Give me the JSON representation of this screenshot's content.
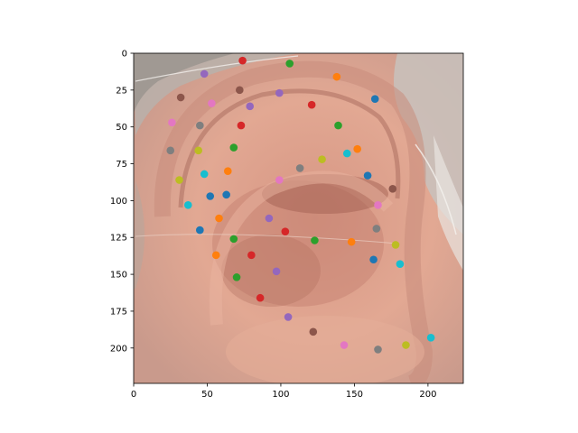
{
  "chart_data": {
    "type": "scatter",
    "background_image": "ear photograph (close-up of human ear with gray hair)",
    "xlim": [
      0,
      224
    ],
    "ylim": [
      224,
      0
    ],
    "x_ticks": [
      0,
      50,
      100,
      150,
      200
    ],
    "y_ticks": [
      0,
      25,
      50,
      75,
      100,
      125,
      150,
      175,
      200
    ],
    "grid": false,
    "legend": "none",
    "palette": [
      "#1f77b4",
      "#ff7f0e",
      "#2ca02c",
      "#d62728",
      "#9467bd",
      "#8c564b",
      "#e377c2",
      "#7f7f7f",
      "#bcbd22",
      "#17becf"
    ],
    "points": [
      {
        "x": 74,
        "y": 5,
        "color": "#d62728"
      },
      {
        "x": 106,
        "y": 7,
        "color": "#2ca02c"
      },
      {
        "x": 48,
        "y": 14,
        "color": "#9467bd"
      },
      {
        "x": 138,
        "y": 16,
        "color": "#ff7f0e"
      },
      {
        "x": 72,
        "y": 25,
        "color": "#8c564b"
      },
      {
        "x": 99,
        "y": 27,
        "color": "#9467bd"
      },
      {
        "x": 32,
        "y": 30,
        "color": "#8c564b"
      },
      {
        "x": 164,
        "y": 31,
        "color": "#1f77b4"
      },
      {
        "x": 53,
        "y": 34,
        "color": "#e377c2"
      },
      {
        "x": 79,
        "y": 36,
        "color": "#9467bd"
      },
      {
        "x": 121,
        "y": 35,
        "color": "#d62728"
      },
      {
        "x": 26,
        "y": 47,
        "color": "#e377c2"
      },
      {
        "x": 45,
        "y": 49,
        "color": "#7f7f7f"
      },
      {
        "x": 73,
        "y": 49,
        "color": "#d62728"
      },
      {
        "x": 139,
        "y": 49,
        "color": "#2ca02c"
      },
      {
        "x": 68,
        "y": 64,
        "color": "#2ca02c"
      },
      {
        "x": 25,
        "y": 66,
        "color": "#7f7f7f"
      },
      {
        "x": 44,
        "y": 66,
        "color": "#bcbd22"
      },
      {
        "x": 152,
        "y": 65,
        "color": "#ff7f0e"
      },
      {
        "x": 145,
        "y": 68,
        "color": "#17becf"
      },
      {
        "x": 128,
        "y": 72,
        "color": "#bcbd22"
      },
      {
        "x": 113,
        "y": 78,
        "color": "#7f7f7f"
      },
      {
        "x": 64,
        "y": 80,
        "color": "#ff7f0e"
      },
      {
        "x": 48,
        "y": 82,
        "color": "#17becf"
      },
      {
        "x": 159,
        "y": 83,
        "color": "#1f77b4"
      },
      {
        "x": 31,
        "y": 86,
        "color": "#bcbd22"
      },
      {
        "x": 99,
        "y": 86,
        "color": "#e377c2"
      },
      {
        "x": 176,
        "y": 92,
        "color": "#8c564b"
      },
      {
        "x": 52,
        "y": 97,
        "color": "#1f77b4"
      },
      {
        "x": 63,
        "y": 96,
        "color": "#1f77b4"
      },
      {
        "x": 37,
        "y": 103,
        "color": "#17becf"
      },
      {
        "x": 166,
        "y": 103,
        "color": "#e377c2"
      },
      {
        "x": 58,
        "y": 112,
        "color": "#ff7f0e"
      },
      {
        "x": 92,
        "y": 112,
        "color": "#9467bd"
      },
      {
        "x": 45,
        "y": 120,
        "color": "#1f77b4"
      },
      {
        "x": 103,
        "y": 121,
        "color": "#d62728"
      },
      {
        "x": 165,
        "y": 119,
        "color": "#7f7f7f"
      },
      {
        "x": 68,
        "y": 126,
        "color": "#2ca02c"
      },
      {
        "x": 123,
        "y": 127,
        "color": "#2ca02c"
      },
      {
        "x": 148,
        "y": 128,
        "color": "#ff7f0e"
      },
      {
        "x": 178,
        "y": 130,
        "color": "#bcbd22"
      },
      {
        "x": 56,
        "y": 137,
        "color": "#ff7f0e"
      },
      {
        "x": 80,
        "y": 137,
        "color": "#d62728"
      },
      {
        "x": 163,
        "y": 140,
        "color": "#1f77b4"
      },
      {
        "x": 181,
        "y": 143,
        "color": "#17becf"
      },
      {
        "x": 97,
        "y": 148,
        "color": "#9467bd"
      },
      {
        "x": 70,
        "y": 152,
        "color": "#2ca02c"
      },
      {
        "x": 86,
        "y": 166,
        "color": "#d62728"
      },
      {
        "x": 105,
        "y": 179,
        "color": "#9467bd"
      },
      {
        "x": 122,
        "y": 189,
        "color": "#8c564b"
      },
      {
        "x": 143,
        "y": 198,
        "color": "#e377c2"
      },
      {
        "x": 166,
        "y": 201,
        "color": "#7f7f7f"
      },
      {
        "x": 185,
        "y": 198,
        "color": "#bcbd22"
      },
      {
        "x": 202,
        "y": 193,
        "color": "#17becf"
      }
    ]
  }
}
